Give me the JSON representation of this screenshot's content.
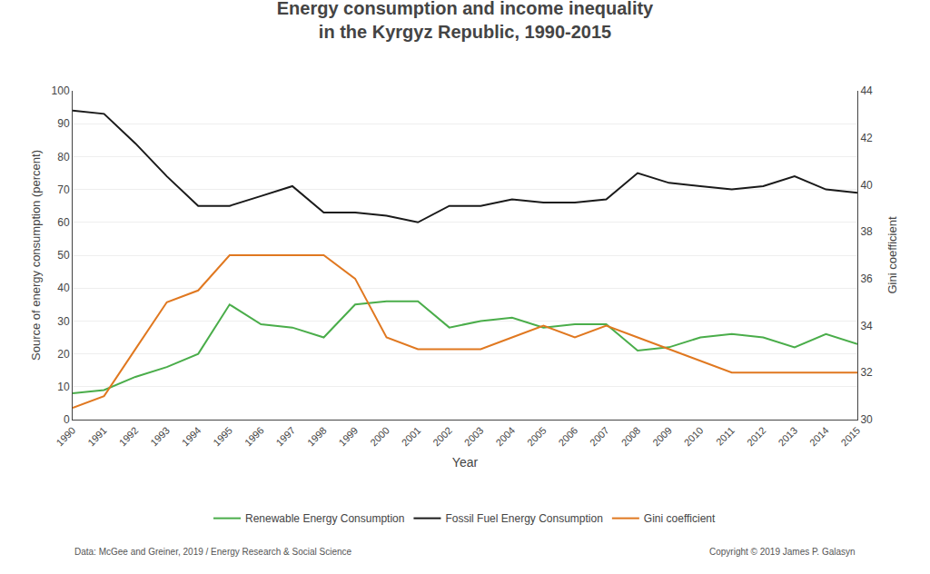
{
  "chart_data": {
    "type": "line",
    "title": "Energy consumption and income inequality\nin the Kyrgyz Republic, 1990-2015",
    "xlabel": "Year",
    "ylabel": "Source of energy consumption (percent)",
    "y2label": "Gini coefficient",
    "x": [
      1990,
      1991,
      1992,
      1993,
      1994,
      1995,
      1996,
      1997,
      1998,
      1999,
      2000,
      2001,
      2002,
      2003,
      2004,
      2005,
      2006,
      2007,
      2008,
      2009,
      2010,
      2011,
      2012,
      2013,
      2014,
      2015
    ],
    "xlim": [
      1990,
      2015
    ],
    "xticks": [
      1990,
      1991,
      1992,
      1993,
      1994,
      1995,
      1996,
      1997,
      1998,
      1999,
      2000,
      2001,
      2002,
      2003,
      2004,
      2005,
      2006,
      2007,
      2008,
      2009,
      2010,
      2011,
      2012,
      2013,
      2014,
      2015
    ],
    "ylim": [
      0,
      100
    ],
    "yticks": [
      0,
      10,
      20,
      30,
      40,
      50,
      60,
      70,
      80,
      90,
      100
    ],
    "y2lim": [
      30,
      44
    ],
    "y2ticks": [
      30,
      32,
      34,
      36,
      38,
      40,
      42,
      44
    ],
    "grid": true,
    "legend": "bottom",
    "series": [
      {
        "name": "Renewable Energy Consumption",
        "color": "#4aad4a",
        "values": [
          8,
          9,
          13,
          16,
          20,
          35,
          29,
          28,
          25,
          35,
          36,
          36,
          28,
          30,
          31,
          28,
          29,
          29,
          21,
          22,
          25,
          26,
          25,
          22,
          26,
          23
        ]
      },
      {
        "name": "Fossil Fuel Energy Consumption",
        "color": "#1a1a1a",
        "values": [
          94,
          93,
          84,
          74,
          65,
          65,
          68,
          71,
          63,
          63,
          62,
          60,
          65,
          65,
          67,
          66,
          66,
          67,
          75,
          72,
          71,
          70,
          71,
          74,
          70,
          69
        ]
      },
      {
        "name": "Gini coefficient",
        "color": "#e07820",
        "axis": "y2",
        "values": [
          30.5,
          31.0,
          33.0,
          35.0,
          35.5,
          37.0,
          37.0,
          37.0,
          37.0,
          36.0,
          33.5,
          33.0,
          33.0,
          33.0,
          33.5,
          34.0,
          33.5,
          34.0,
          33.5,
          33.0,
          32.5,
          32.0,
          32.0,
          32.0,
          32.0,
          32.0
        ]
      }
    ],
    "annotations": [
      "Data: McGee and Greiner, 2019 / Energy Research & Social Science",
      "Copyright © 2019 James P. Galasyn"
    ]
  }
}
